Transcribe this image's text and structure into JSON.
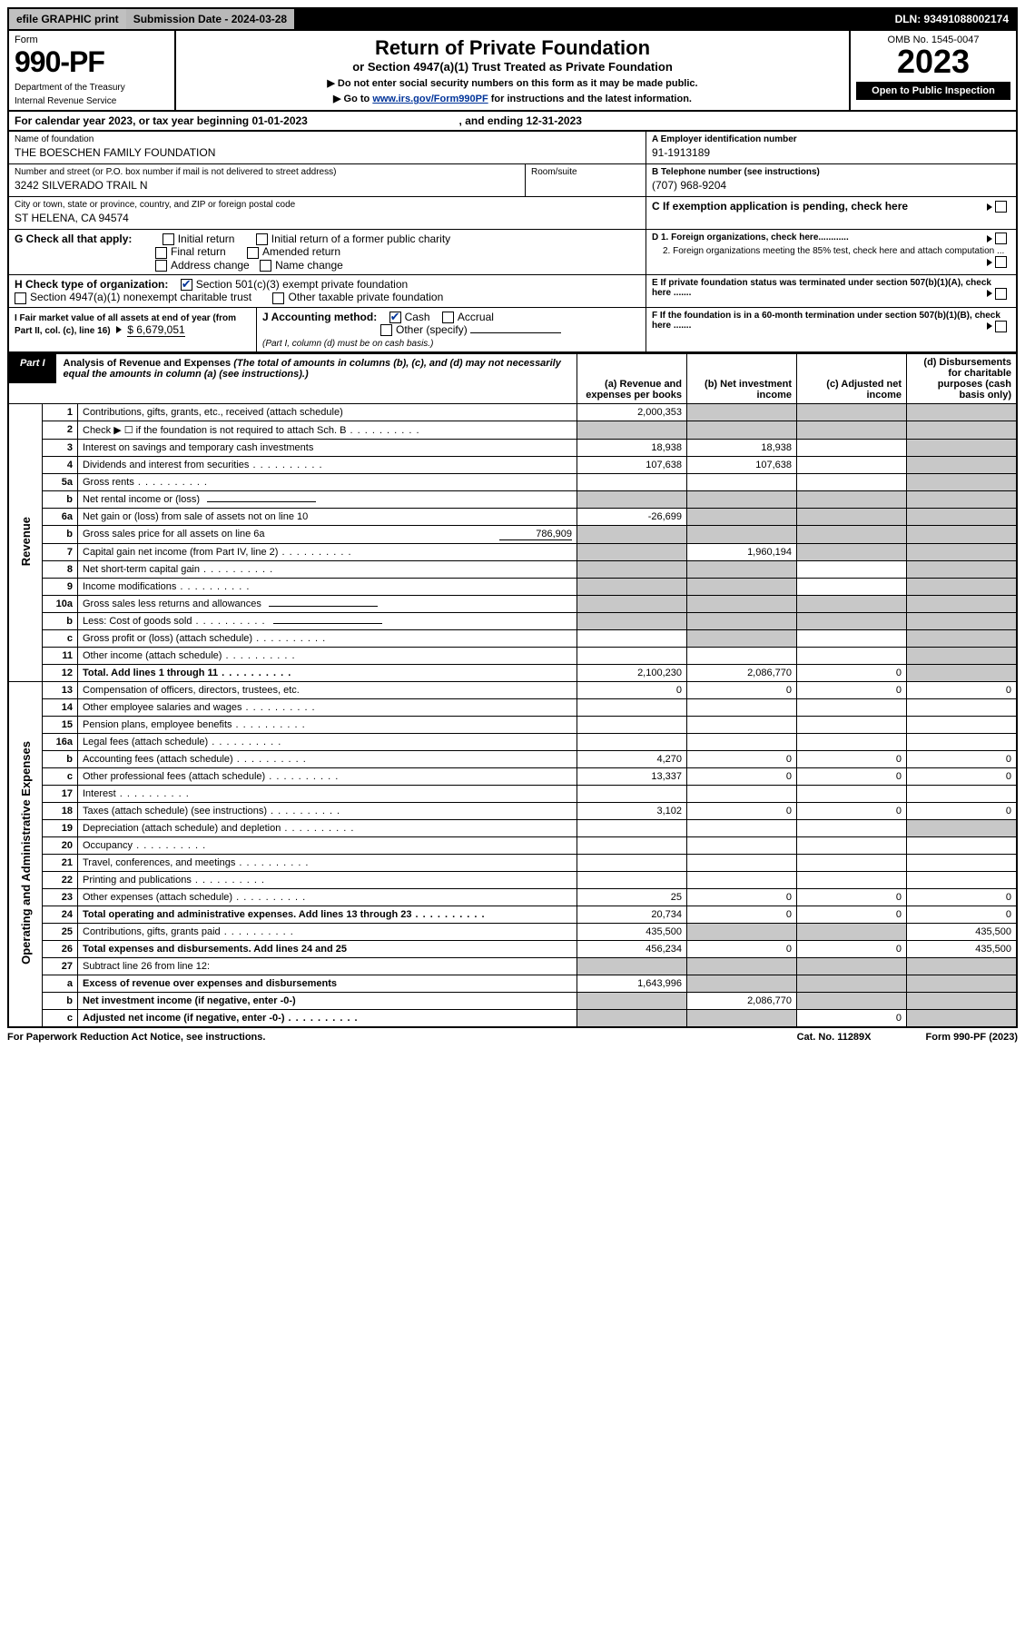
{
  "topbar": {
    "efile": "efile GRAPHIC print",
    "submission_label": "Submission Date - 2024-03-28",
    "dln": "DLN: 93491088002174"
  },
  "header": {
    "form_label": "Form",
    "form_number": "990-PF",
    "dept": "Department of the Treasury",
    "irs": "Internal Revenue Service",
    "title": "Return of Private Foundation",
    "subtitle": "or Section 4947(a)(1) Trust Treated as Private Foundation",
    "instr1": "▶ Do not enter social security numbers on this form as it may be made public.",
    "instr2_pre": "▶ Go to ",
    "instr2_link": "www.irs.gov/Form990PF",
    "instr2_post": " for instructions and the latest information.",
    "omb": "OMB No. 1545-0047",
    "year": "2023",
    "open_badge": "Open to Public Inspection"
  },
  "cal_year": {
    "prefix": "For calendar year 2023, or tax year beginning ",
    "begin": "01-01-2023",
    "mid": " , and ending ",
    "end": "12-31-2023"
  },
  "org": {
    "name_label": "Name of foundation",
    "name": "THE BOESCHEN FAMILY FOUNDATION",
    "addr_label": "Number and street (or P.O. box number if mail is not delivered to street address)",
    "addr": "3242 SILVERADO TRAIL N",
    "room_label": "Room/suite",
    "city_label": "City or town, state or province, country, and ZIP or foreign postal code",
    "city": "ST HELENA, CA  94574"
  },
  "right_info": {
    "a_label": "A Employer identification number",
    "a_val": "91-1913189",
    "b_label": "B Telephone number (see instructions)",
    "b_val": "(707) 968-9204",
    "c_label": "C If exemption application is pending, check here",
    "d1": "D 1. Foreign organizations, check here............",
    "d2": "2. Foreign organizations meeting the 85% test, check here and attach computation ...",
    "e": "E If private foundation status was terminated under section 507(b)(1)(A), check here .......",
    "f": "F If the foundation is in a 60-month termination under section 507(b)(1)(B), check here .......",
    "g_label": "G Check all that apply:",
    "g_opts": [
      "Initial return",
      "Initial return of a former public charity",
      "Final return",
      "Amended return",
      "Address change",
      "Name change"
    ],
    "h_label": "H Check type of organization:",
    "h_opts": [
      "Section 501(c)(3) exempt private foundation",
      "Section 4947(a)(1) nonexempt charitable trust",
      "Other taxable private foundation"
    ],
    "i_label": "I Fair market value of all assets at end of year (from Part II, col. (c), line 16)",
    "i_val": "$  6,679,051",
    "j_label": "J Accounting method:",
    "j_opts": [
      "Cash",
      "Accrual",
      "Other (specify)"
    ],
    "j_note": "(Part I, column (d) must be on cash basis.)"
  },
  "part1": {
    "tag": "Part I",
    "title": "Analysis of Revenue and Expenses",
    "note": "(The total of amounts in columns (b), (c), and (d) may not necessarily equal the amounts in column (a) (see instructions).)",
    "col_a": "(a) Revenue and expenses per books",
    "col_b": "(b) Net investment income",
    "col_c": "(c) Adjusted net income",
    "col_d": "(d) Disbursements for charitable purposes (cash basis only)"
  },
  "sections": {
    "revenue": "Revenue",
    "expenses": "Operating and Administrative Expenses"
  },
  "rows": [
    {
      "n": "1",
      "desc": "Contributions, gifts, grants, etc., received (attach schedule)",
      "a": "2,000,353",
      "b": "",
      "c": "",
      "d": "",
      "shade": [
        "b",
        "c",
        "d"
      ]
    },
    {
      "n": "2",
      "desc": "Check ▶ ☐ if the foundation is not required to attach Sch. B",
      "a": "",
      "b": "",
      "c": "",
      "d": "",
      "shade": [
        "a",
        "b",
        "c",
        "d"
      ],
      "dots": true
    },
    {
      "n": "3",
      "desc": "Interest on savings and temporary cash investments",
      "a": "18,938",
      "b": "18,938",
      "c": "",
      "d": "",
      "shade": [
        "d"
      ]
    },
    {
      "n": "4",
      "desc": "Dividends and interest from securities",
      "a": "107,638",
      "b": "107,638",
      "c": "",
      "d": "",
      "shade": [
        "d"
      ],
      "dots": true
    },
    {
      "n": "5a",
      "desc": "Gross rents",
      "a": "",
      "b": "",
      "c": "",
      "d": "",
      "shade": [
        "d"
      ],
      "dots": true
    },
    {
      "n": "b",
      "desc": "Net rental income or (loss)",
      "a": "",
      "b": "",
      "c": "",
      "d": "",
      "shade": [
        "a",
        "b",
        "c",
        "d"
      ],
      "inline_underline": true
    },
    {
      "n": "6a",
      "desc": "Net gain or (loss) from sale of assets not on line 10",
      "a": "-26,699",
      "b": "",
      "c": "",
      "d": "",
      "shade": [
        "b",
        "c",
        "d"
      ]
    },
    {
      "n": "b",
      "desc": "Gross sales price for all assets on line 6a",
      "a": "",
      "b": "",
      "c": "",
      "d": "",
      "shade": [
        "a",
        "b",
        "c",
        "d"
      ],
      "inline_val": "786,909"
    },
    {
      "n": "7",
      "desc": "Capital gain net income (from Part IV, line 2)",
      "a": "",
      "b": "1,960,194",
      "c": "",
      "d": "",
      "shade": [
        "a",
        "c",
        "d"
      ],
      "dots": true
    },
    {
      "n": "8",
      "desc": "Net short-term capital gain",
      "a": "",
      "b": "",
      "c": "",
      "d": "",
      "shade": [
        "a",
        "b",
        "d"
      ],
      "dots": true
    },
    {
      "n": "9",
      "desc": "Income modifications",
      "a": "",
      "b": "",
      "c": "",
      "d": "",
      "shade": [
        "a",
        "b",
        "d"
      ],
      "dots": true
    },
    {
      "n": "10a",
      "desc": "Gross sales less returns and allowances",
      "a": "",
      "b": "",
      "c": "",
      "d": "",
      "shade": [
        "a",
        "b",
        "c",
        "d"
      ],
      "inline_underline": true
    },
    {
      "n": "b",
      "desc": "Less: Cost of goods sold",
      "a": "",
      "b": "",
      "c": "",
      "d": "",
      "shade": [
        "a",
        "b",
        "c",
        "d"
      ],
      "dots": true,
      "inline_underline": true
    },
    {
      "n": "c",
      "desc": "Gross profit or (loss) (attach schedule)",
      "a": "",
      "b": "",
      "c": "",
      "d": "",
      "shade": [
        "b",
        "d"
      ],
      "dots": true
    },
    {
      "n": "11",
      "desc": "Other income (attach schedule)",
      "a": "",
      "b": "",
      "c": "",
      "d": "",
      "shade": [
        "d"
      ],
      "dots": true
    },
    {
      "n": "12",
      "desc": "Total. Add lines 1 through 11",
      "a": "2,100,230",
      "b": "2,086,770",
      "c": "0",
      "d": "",
      "shade": [
        "d"
      ],
      "bold": true,
      "dots": true
    },
    {
      "n": "13",
      "desc": "Compensation of officers, directors, trustees, etc.",
      "a": "0",
      "b": "0",
      "c": "0",
      "d": "0"
    },
    {
      "n": "14",
      "desc": "Other employee salaries and wages",
      "a": "",
      "b": "",
      "c": "",
      "d": "",
      "dots": true
    },
    {
      "n": "15",
      "desc": "Pension plans, employee benefits",
      "a": "",
      "b": "",
      "c": "",
      "d": "",
      "dots": true
    },
    {
      "n": "16a",
      "desc": "Legal fees (attach schedule)",
      "a": "",
      "b": "",
      "c": "",
      "d": "",
      "dots": true
    },
    {
      "n": "b",
      "desc": "Accounting fees (attach schedule)",
      "a": "4,270",
      "b": "0",
      "c": "0",
      "d": "0",
      "dots": true
    },
    {
      "n": "c",
      "desc": "Other professional fees (attach schedule)",
      "a": "13,337",
      "b": "0",
      "c": "0",
      "d": "0",
      "dots": true
    },
    {
      "n": "17",
      "desc": "Interest",
      "a": "",
      "b": "",
      "c": "",
      "d": "",
      "dots": true
    },
    {
      "n": "18",
      "desc": "Taxes (attach schedule) (see instructions)",
      "a": "3,102",
      "b": "0",
      "c": "0",
      "d": "0",
      "dots": true
    },
    {
      "n": "19",
      "desc": "Depreciation (attach schedule) and depletion",
      "a": "",
      "b": "",
      "c": "",
      "d": "",
      "shade": [
        "d"
      ],
      "dots": true
    },
    {
      "n": "20",
      "desc": "Occupancy",
      "a": "",
      "b": "",
      "c": "",
      "d": "",
      "dots": true
    },
    {
      "n": "21",
      "desc": "Travel, conferences, and meetings",
      "a": "",
      "b": "",
      "c": "",
      "d": "",
      "dots": true
    },
    {
      "n": "22",
      "desc": "Printing and publications",
      "a": "",
      "b": "",
      "c": "",
      "d": "",
      "dots": true
    },
    {
      "n": "23",
      "desc": "Other expenses (attach schedule)",
      "a": "25",
      "b": "0",
      "c": "0",
      "d": "0",
      "dots": true
    },
    {
      "n": "24",
      "desc": "Total operating and administrative expenses. Add lines 13 through 23",
      "a": "20,734",
      "b": "0",
      "c": "0",
      "d": "0",
      "bold": true,
      "dots": true
    },
    {
      "n": "25",
      "desc": "Contributions, gifts, grants paid",
      "a": "435,500",
      "b": "",
      "c": "",
      "d": "435,500",
      "shade": [
        "b",
        "c"
      ],
      "dots": true
    },
    {
      "n": "26",
      "desc": "Total expenses and disbursements. Add lines 24 and 25",
      "a": "456,234",
      "b": "0",
      "c": "0",
      "d": "435,500",
      "bold": true
    },
    {
      "n": "27",
      "desc": "Subtract line 26 from line 12:",
      "a": "",
      "b": "",
      "c": "",
      "d": "",
      "shade": [
        "a",
        "b",
        "c",
        "d"
      ]
    },
    {
      "n": "a",
      "desc": "Excess of revenue over expenses and disbursements",
      "a": "1,643,996",
      "b": "",
      "c": "",
      "d": "",
      "shade": [
        "b",
        "c",
        "d"
      ],
      "bold": true
    },
    {
      "n": "b",
      "desc": "Net investment income (if negative, enter -0-)",
      "a": "",
      "b": "2,086,770",
      "c": "",
      "d": "",
      "shade": [
        "a",
        "c",
        "d"
      ],
      "bold": true
    },
    {
      "n": "c",
      "desc": "Adjusted net income (if negative, enter -0-)",
      "a": "",
      "b": "",
      "c": "0",
      "d": "",
      "shade": [
        "a",
        "b",
        "d"
      ],
      "bold": true,
      "dots": true
    }
  ],
  "footer": {
    "left": "For Paperwork Reduction Act Notice, see instructions.",
    "cat": "Cat. No. 11289X",
    "form": "Form 990-PF (2023)"
  }
}
